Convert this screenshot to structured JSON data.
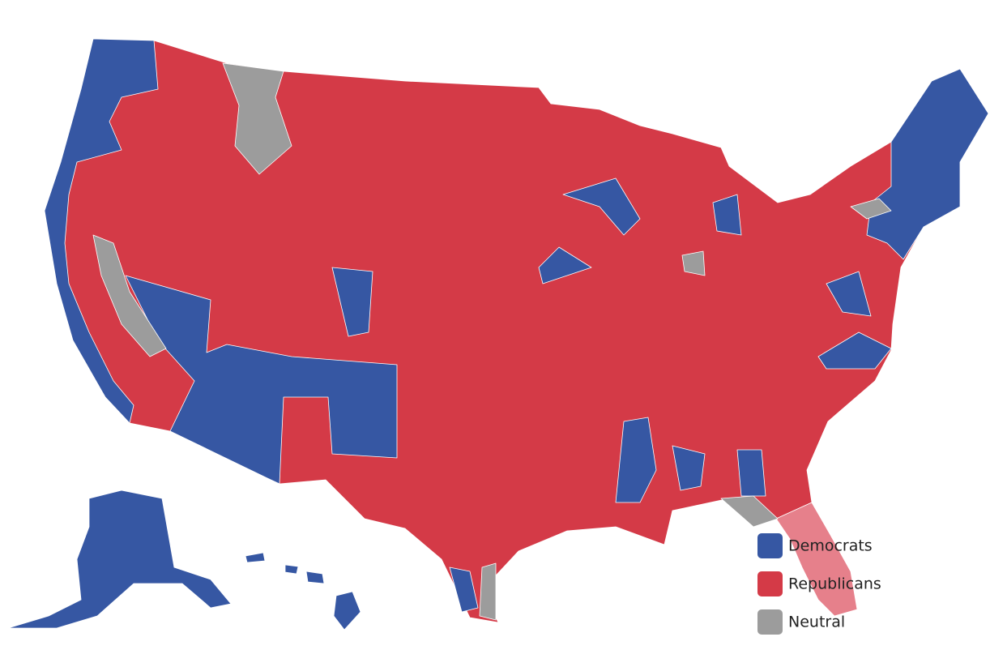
{
  "legend": [
    {
      "label": "Democrats",
      "color": "#3657a3"
    },
    {
      "label": "Republicans",
      "color": "#d43a47"
    },
    {
      "label": "Neutral",
      "color": "#9c9c9c"
    }
  ]
}
